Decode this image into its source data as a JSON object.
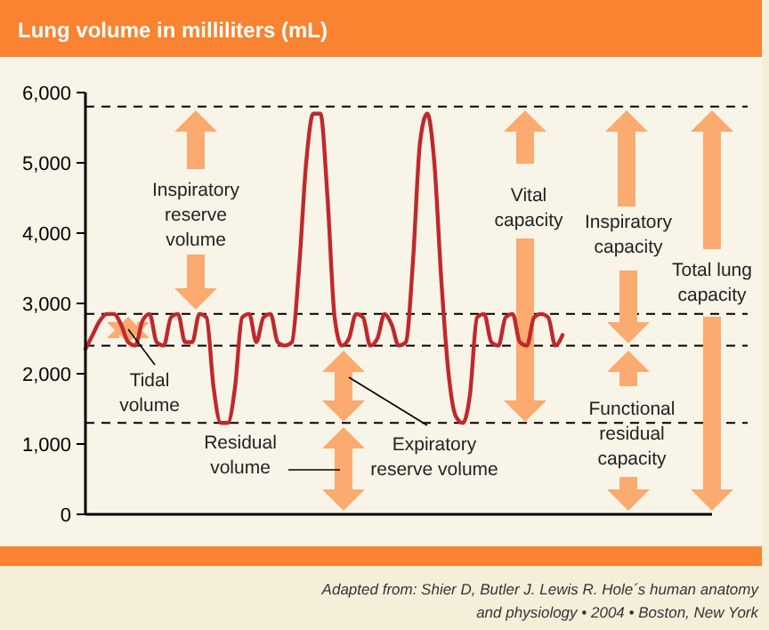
{
  "chart_data": {
    "type": "line",
    "title": "Lung volume in milliliters (mL)",
    "categories": [
      null,
      null,
      null,
      null,
      null,
      null,
      null,
      null,
      null,
      null,
      null,
      null,
      null,
      null,
      null,
      null,
      null,
      null,
      null,
      null,
      null,
      null,
      null,
      null,
      null,
      null,
      null,
      null,
      null,
      null,
      null,
      null,
      null,
      null,
      null,
      null,
      null,
      null,
      null,
      null,
      null,
      null,
      null,
      null,
      null,
      null,
      null,
      null,
      null,
      null,
      null,
      null,
      null,
      null,
      null,
      null,
      null,
      null,
      null,
      null,
      null,
      null,
      null,
      null,
      null,
      null,
      null,
      null,
      null,
      null,
      null,
      null,
      null,
      null,
      null,
      null,
      null,
      null,
      null,
      null,
      null,
      null,
      null,
      null,
      null,
      null,
      null,
      null,
      null
    ],
    "series": [
      {
        "color": "#c0282c",
        "values": [
          2350,
          2550,
          2750,
          2850,
          2850,
          2700,
          2450,
          2400,
          2750,
          2850,
          2450,
          2400,
          2800,
          2850,
          2450,
          2450,
          2850,
          2800,
          1800,
          1300,
          1300,
          1800,
          2800,
          2850,
          2450,
          2800,
          2850,
          2450,
          2400,
          2450,
          3500,
          5000,
          5700,
          5700,
          4500,
          2800,
          2400,
          2500,
          2850,
          2800,
          2400,
          2500,
          2850,
          2700,
          2400,
          2450,
          3600,
          5300,
          5700,
          5000,
          3300,
          2000,
          1400,
          1300,
          1700,
          2800,
          2850,
          2450,
          2400,
          2800,
          2850,
          2450,
          2400,
          2800,
          2850,
          2800,
          2400,
          2550,
          null,
          null,
          null,
          null,
          null,
          null,
          null,
          null,
          null,
          null,
          null,
          null,
          null,
          null,
          null,
          null,
          null,
          null,
          null,
          null,
          null
        ]
      }
    ],
    "ylim": [
      0,
      6000
    ],
    "yticks": [
      {
        "value": 0,
        "label": "0"
      },
      {
        "value": 1000,
        "label": "1,000"
      },
      {
        "value": 2000,
        "label": "2,000"
      },
      {
        "value": 3000,
        "label": "3,000"
      },
      {
        "value": 4000,
        "label": "4,000"
      },
      {
        "value": 5000,
        "label": "5,000"
      },
      {
        "value": 6000,
        "label": "6,000"
      }
    ],
    "ref_lines": [
      {
        "axis": "y",
        "value": 5800,
        "line_style": "dashed",
        "color": "#000000"
      },
      {
        "axis": "y",
        "value": 2850,
        "line_style": "dashed",
        "color": "#000000"
      },
      {
        "axis": "y",
        "value": 2400,
        "line_style": "dashed",
        "color": "#000000"
      },
      {
        "axis": "y",
        "value": 1300,
        "line_style": "dashed",
        "color": "#000000"
      }
    ],
    "annotations": [
      "Inspiratory reserve volume",
      "Tidal volume",
      "Residual volume",
      "Expiratory reserve volume",
      "Vital capacity",
      "Inspiratory capacity",
      "Total lung capacity",
      "Functional residual capacity",
      "Adapted from: Shier D, Butler J. Lewis R. Hole´s human anatomy and physiology • 2004 • Boston, New York"
    ],
    "grid": false,
    "marker": "none",
    "line_style": "solid"
  }
}
